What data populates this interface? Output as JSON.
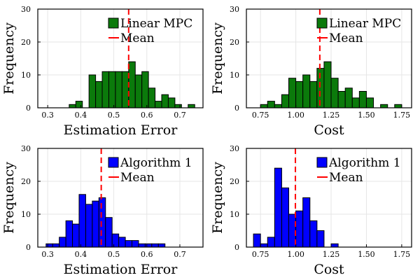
{
  "chart_data": [
    {
      "type": "bar",
      "bin_centers": [
        0.375,
        0.395,
        0.435,
        0.455,
        0.475,
        0.495,
        0.515,
        0.535,
        0.555,
        0.575,
        0.595,
        0.615,
        0.635,
        0.655,
        0.675,
        0.695,
        0.735
      ],
      "values": [
        1,
        2,
        10,
        8,
        11,
        11,
        11,
        11,
        14,
        10,
        11,
        6,
        2,
        4,
        3,
        1,
        1
      ],
      "bin_width": 0.02,
      "mean": 0.545,
      "xlim": [
        0.27,
        0.77
      ],
      "ylim": [
        0,
        30
      ],
      "xticks": [
        "0.3",
        "0.4",
        "0.5",
        "0.6",
        "0.7"
      ],
      "yticks": [
        "0",
        "10",
        "20",
        "30"
      ],
      "xlabel": "Estimation Error",
      "ylabel": "Frequency",
      "color": "#0b7a0b",
      "legend": {
        "placement": "top-right",
        "series": "Linear MPC",
        "mean_label": "Mean"
      }
    },
    {
      "type": "bar",
      "bin_centers": [
        0.775,
        0.825,
        0.875,
        0.925,
        0.975,
        1.025,
        1.075,
        1.125,
        1.175,
        1.225,
        1.275,
        1.325,
        1.375,
        1.425,
        1.475,
        1.525,
        1.625,
        1.725
      ],
      "values": [
        1,
        2,
        1,
        4,
        9,
        8,
        10,
        8,
        12,
        14,
        9,
        5,
        6,
        3,
        5,
        3,
        1,
        1
      ],
      "bin_width": 0.05,
      "mean": 1.17,
      "xlim": [
        0.65,
        1.82
      ],
      "ylim": [
        0,
        30
      ],
      "xticks": [
        "0.75",
        "1.00",
        "1.25",
        "1.50",
        "1.75"
      ],
      "yticks": [
        "0",
        "10",
        "20",
        "30"
      ],
      "xlabel": "Cost",
      "ylabel": "Frequency",
      "color": "#0b7a0b",
      "legend": {
        "placement": "top-right",
        "series": "Linear MPC",
        "mean_label": "Mean"
      }
    },
    {
      "type": "bar",
      "bin_centers": [
        0.305,
        0.325,
        0.345,
        0.365,
        0.385,
        0.405,
        0.425,
        0.445,
        0.465,
        0.485,
        0.505,
        0.525,
        0.545,
        0.565,
        0.585,
        0.605,
        0.625,
        0.645
      ],
      "values": [
        1,
        1,
        3,
        8,
        7,
        16,
        13,
        14,
        15,
        9,
        4,
        3,
        2,
        2,
        1,
        1,
        1,
        1
      ],
      "bin_width": 0.02,
      "mean": 0.462,
      "xlim": [
        0.27,
        0.77
      ],
      "ylim": [
        0,
        30
      ],
      "xticks": [
        "0.3",
        "0.4",
        "0.5",
        "0.6",
        "0.7"
      ],
      "yticks": [
        "0",
        "10",
        "20",
        "30"
      ],
      "xlabel": "Estimation Error",
      "ylabel": "Frequency",
      "color": "#0000ff",
      "legend": {
        "placement": "top-right",
        "series": "Algorithm 1",
        "mean_label": "Mean"
      }
    },
    {
      "type": "bar",
      "bin_centers": [
        0.725,
        0.775,
        0.825,
        0.875,
        0.925,
        0.975,
        1.025,
        1.075,
        1.125,
        1.175,
        1.225,
        1.275,
        1.325
      ],
      "values": [
        4,
        1,
        3,
        24,
        18,
        10,
        11,
        15,
        8,
        5,
        0,
        1,
        0
      ],
      "bin_width": 0.05,
      "mean": 0.997,
      "xlim": [
        0.65,
        1.82
      ],
      "ylim": [
        0,
        30
      ],
      "xticks": [
        "0.75",
        "1.00",
        "1.25",
        "1.50",
        "1.75"
      ],
      "yticks": [
        "0",
        "10",
        "20",
        "30"
      ],
      "xlabel": "Cost",
      "ylabel": "Frequency",
      "color": "#0000ff",
      "legend": {
        "placement": "top-right",
        "series": "Algorithm 1",
        "mean_label": "Mean"
      }
    }
  ]
}
